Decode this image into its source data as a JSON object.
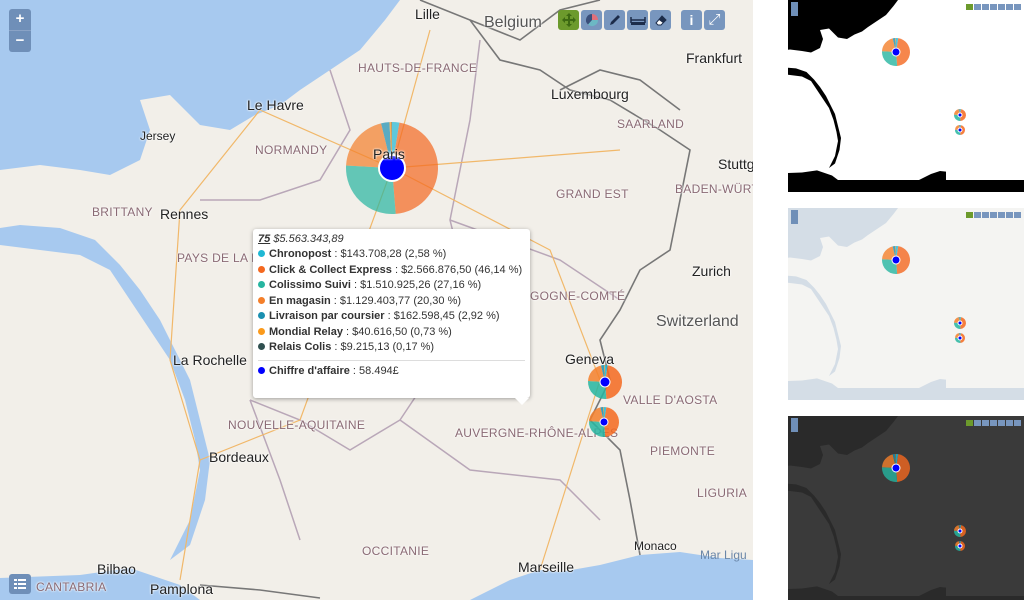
{
  "map": {
    "zoom_in": "+",
    "zoom_out": "−",
    "labels": {
      "cities": [
        "Lille",
        "Le Havre",
        "Rennes",
        "La Rochelle",
        "Bordeaux",
        "Bilbao",
        "Frankfurt",
        "Luxembourg",
        "Stuttg",
        "Zurich",
        "Geneva",
        "Marseille",
        "Monaco",
        "Pamplona",
        "Jersey",
        "Paris"
      ],
      "regions": [
        "HAUTS-DE-FRANCE",
        "NORMANDY",
        "BRITTANY",
        "PAYS DE LA L",
        "GRAND EST",
        "BADEN-WÜRTT",
        "SAARLAND",
        "GOGNE-COMTÉ",
        "NOUVELLE-AQUITAINE",
        "AUVERGNE-RHÔNE-ALPES",
        "VALLE D'AOSTA",
        "PIEMONTE",
        "LIGURIA",
        "OCCITANIE",
        "CANTABRIA"
      ],
      "countries": [
        "Belgium",
        "Switzerland"
      ],
      "seas": [
        "Mar Ligu"
      ]
    },
    "toolbar": [
      "move-icon",
      "pie-chart-icon",
      "pen-icon",
      "measure-icon",
      "eraser-icon",
      "info-icon",
      "fullscreen-icon"
    ],
    "toolbar_info": "i",
    "toolbar_fullscreen": "⤢"
  },
  "tooltip": {
    "code": "75",
    "total": "$5.563.343,89",
    "items": [
      {
        "name": "Chronopost",
        "value": "$143.708,28 (2,58 %)",
        "pct": 2.58,
        "color": "#1fb8d4"
      },
      {
        "name": "Click & Collect Express",
        "value": "$2.566.876,50 (46,14 %)",
        "pct": 46.14,
        "color": "#f4681f"
      },
      {
        "name": "Colissimo Suivi",
        "value": "$1.510.925,26 (27,16 %)",
        "pct": 27.16,
        "color": "#26b5a0"
      },
      {
        "name": "En magasin",
        "value": "$1.129.403,77 (20,30 %)",
        "pct": 20.3,
        "color": "#f47f2a"
      },
      {
        "name": "Livraison par coursier",
        "value": "$162.598,45 (2,92 %)",
        "pct": 2.92,
        "color": "#1a8fb0"
      },
      {
        "name": "Mondial Relay",
        "value": "$40.616,50 (0,73 %)",
        "pct": 0.73,
        "color": "#fb9a1b"
      },
      {
        "name": "Relais Colis",
        "value": "$9.215,13 (0,17 %)",
        "pct": 0.17,
        "color": "#2f4f4f"
      }
    ],
    "metric": {
      "name": "Chiffre d'affaire",
      "value": "58.494£",
      "color": "#0000ff"
    }
  },
  "thumbnails": [
    {
      "theme": "black-white",
      "land": "#ffffff",
      "sea": "#000000"
    },
    {
      "theme": "light",
      "land": "#f4f4f2",
      "sea": "#d4dde6"
    },
    {
      "theme": "dark",
      "land": "#3a3a3a",
      "sea": "#2a2a2a"
    }
  ]
}
